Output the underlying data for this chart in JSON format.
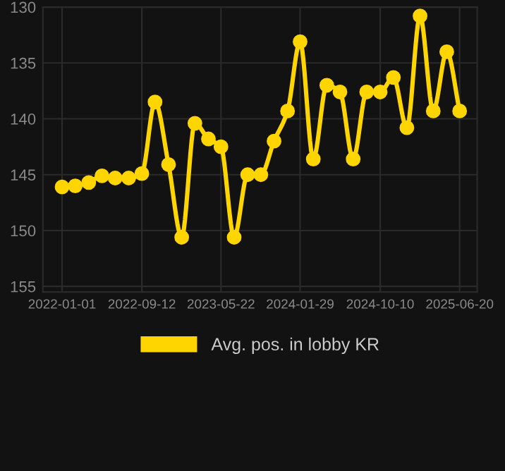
{
  "chart_data": {
    "type": "line",
    "x": [
      "2022-01-01",
      "2022-02-12",
      "2022-03-27",
      "2022-05-08",
      "2022-06-19",
      "2022-08-01",
      "2022-09-12",
      "2022-10-24",
      "2022-12-06",
      "2023-01-17",
      "2023-02-28",
      "2023-04-12",
      "2023-05-22",
      "2023-07-03",
      "2023-08-15",
      "2023-09-26",
      "2023-11-07",
      "2023-12-20",
      "2024-01-29",
      "2024-03-11",
      "2024-04-23",
      "2024-06-04",
      "2024-07-16",
      "2024-08-28",
      "2024-10-10",
      "2024-11-21",
      "2025-01-03",
      "2025-02-14",
      "2025-03-28",
      "2025-05-10",
      "2025-06-20"
    ],
    "series": [
      {
        "name": "Avg. pos. in lobby KR",
        "color": "#ffd500",
        "values": [
          146.1,
          146.0,
          145.7,
          145.1,
          145.3,
          145.3,
          144.9,
          138.5,
          144.1,
          150.6,
          140.4,
          141.8,
          142.5,
          150.6,
          145.0,
          145.0,
          142.0,
          139.3,
          133.1,
          143.6,
          137.0,
          137.6,
          143.6,
          137.6,
          137.6,
          136.3,
          140.8,
          130.8,
          139.3,
          134.0,
          139.3
        ]
      }
    ],
    "xlim": [
      "2021-11-01",
      "2025-08-15"
    ],
    "xticks": [
      "2022-01-01",
      "2022-09-12",
      "2023-05-22",
      "2024-01-29",
      "2024-10-10",
      "2025-06-20"
    ],
    "ylim": [
      155.5,
      130
    ],
    "yticks": [
      130,
      135,
      140,
      145,
      150,
      155
    ],
    "grid": true,
    "legend": "bottom",
    "marker": "circle",
    "line_style": "solid"
  }
}
